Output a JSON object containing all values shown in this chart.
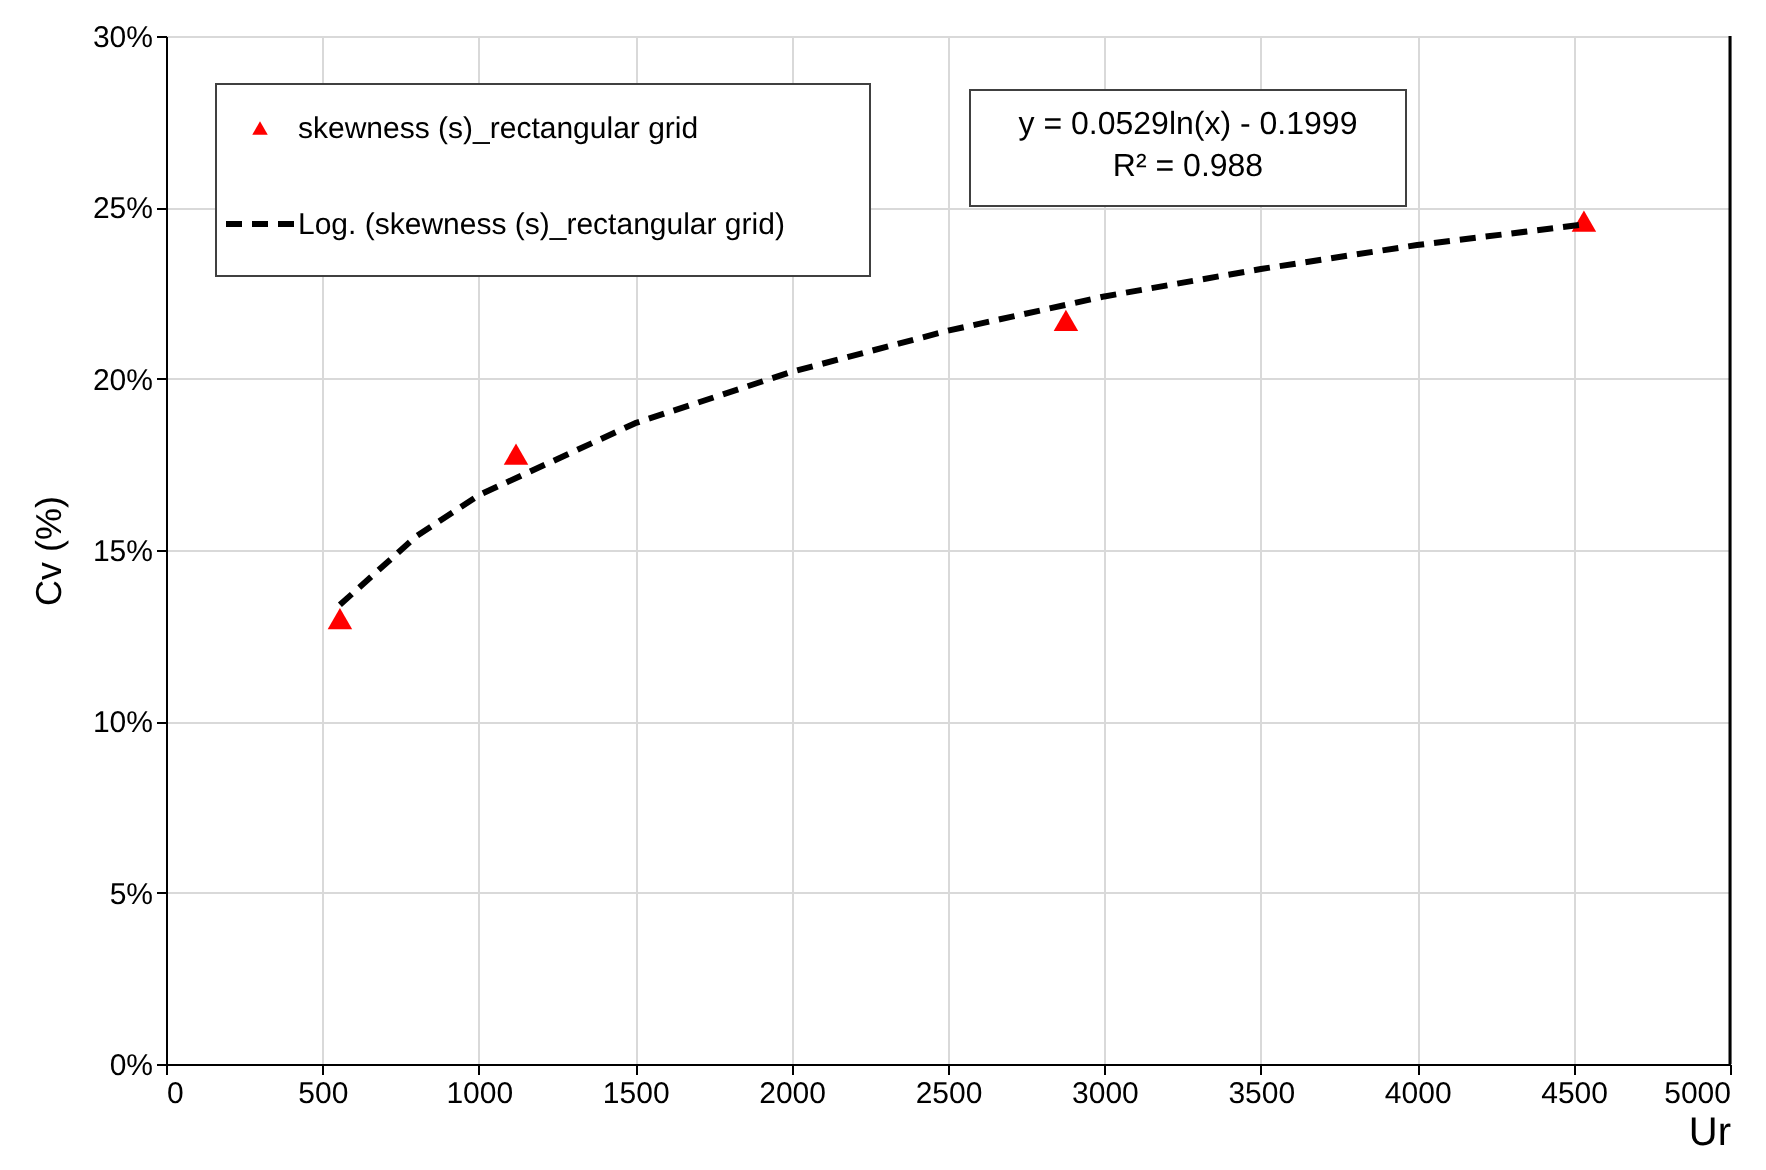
{
  "chart_data": {
    "type": "scatter",
    "xlabel": "Ur",
    "ylabel": "Cv (%)",
    "xlim": [
      0,
      5000
    ],
    "xticks": [
      0,
      500,
      1000,
      1500,
      2000,
      2500,
      3000,
      3500,
      4000,
      4500,
      5000
    ],
    "ylim": [
      0,
      30
    ],
    "yticks": [
      {
        "value": 0,
        "label": "0%"
      },
      {
        "value": 5,
        "label": "5%"
      },
      {
        "value": 10,
        "label": "10%"
      },
      {
        "value": 15,
        "label": "15%"
      },
      {
        "value": 20,
        "label": "20%"
      },
      {
        "value": 25,
        "label": "25%"
      },
      {
        "value": 30,
        "label": "30%"
      }
    ],
    "grid": true,
    "legend": "top left",
    "annotations": [
      "y = 0.0529ln(x) - 0.1999",
      "R² = 0.988"
    ],
    "series": [
      {
        "name": "skewness (s)_rectangular grid",
        "marker": "triangle",
        "color": "#ff0000",
        "x": [
          556,
          1119,
          2877,
          4533
        ],
        "values": [
          13.0,
          17.8,
          21.7,
          24.6
        ]
      },
      {
        "name": "Log. (skewness (s)_rectangular grid)",
        "type": "line",
        "line_style": "dashed",
        "marker": "none",
        "color": "#000000",
        "x": [
          556,
          800,
          1000,
          1500,
          2000,
          2500,
          3000,
          3500,
          4000,
          4533
        ],
        "values": [
          13.4,
          15.4,
          16.6,
          18.7,
          20.2,
          21.4,
          22.4,
          23.2,
          23.9,
          24.5
        ]
      }
    ]
  }
}
